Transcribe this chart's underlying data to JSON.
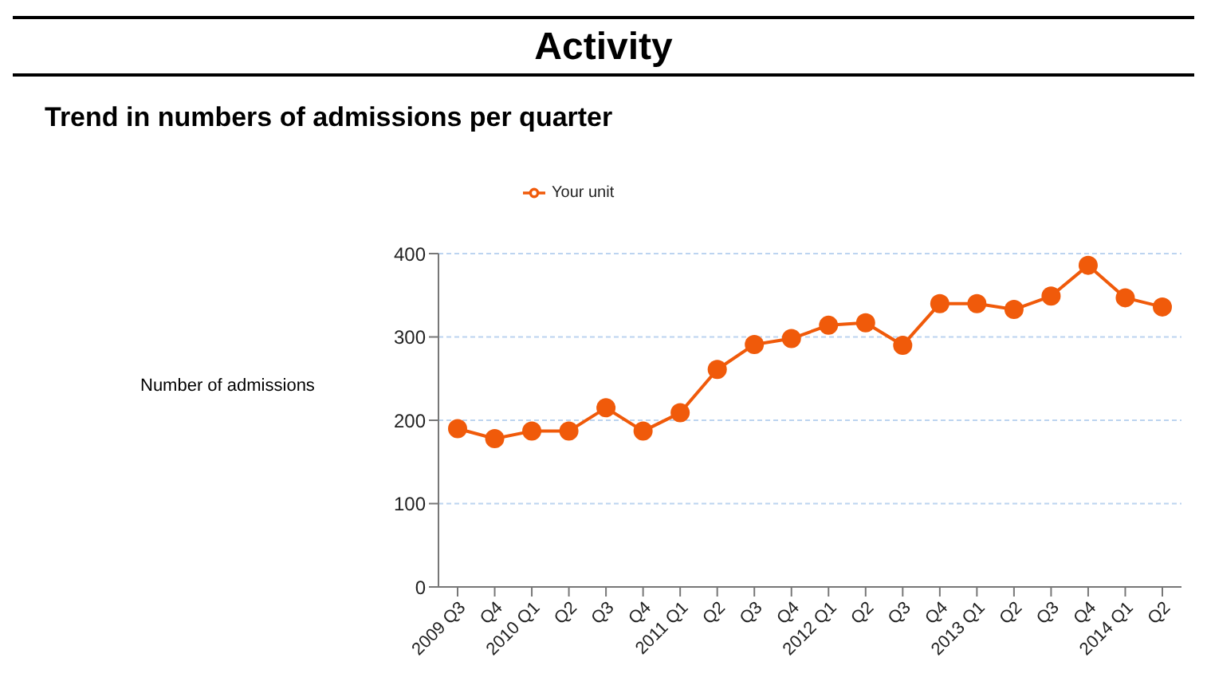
{
  "chart_data": {
    "type": "line",
    "title": "Activity",
    "subtitle": "Trend in numbers of admissions per quarter",
    "ylabel": "Number of admissions",
    "categories": [
      "2009 Q3",
      "Q4",
      "2010 Q1",
      "Q2",
      "Q3",
      "Q4",
      "2011 Q1",
      "Q2",
      "Q3",
      "Q4",
      "2012 Q1",
      "Q2",
      "Q3",
      "Q4",
      "2013 Q1",
      "Q2",
      "Q3",
      "Q4",
      "2014 Q1",
      "Q2"
    ],
    "series": [
      {
        "name": "Your unit",
        "color": "#f05a0a",
        "values": [
          190,
          178,
          187,
          187,
          215,
          187,
          209,
          261,
          291,
          298,
          314,
          317,
          290,
          340,
          340,
          333,
          349,
          386,
          347,
          336
        ]
      }
    ],
    "ylim": [
      0,
      400
    ],
    "yticks": [
      0,
      100,
      200,
      300,
      400
    ],
    "grid": "y",
    "legend": "top",
    "marker": "circle",
    "line_style": "solid"
  }
}
